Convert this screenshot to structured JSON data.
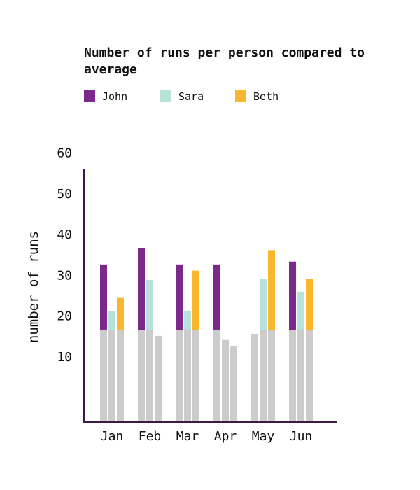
{
  "chart_data": {
    "type": "bar",
    "title": "Number of runs per person compared to average",
    "ylabel": "number of runs",
    "xlabel": "",
    "categories": [
      "Jan",
      "Feb",
      "Mar",
      "Apr",
      "May",
      "Jun"
    ],
    "series": [
      {
        "name": "John",
        "values": [
          32.5,
          36.5,
          32.5,
          32.5,
          15.5,
          33.2
        ]
      },
      {
        "name": "Sara",
        "values": [
          21,
          28.7,
          21.2,
          14,
          29,
          25.8
        ]
      },
      {
        "name": "Beth",
        "values": [
          24.3,
          15,
          31,
          12.5,
          36,
          29
        ]
      }
    ],
    "average": [
      16.5,
      16.5,
      16.5,
      16.5,
      16.5,
      16.5
    ],
    "ylim": [
      0,
      62
    ],
    "yticks": [
      10,
      20,
      30,
      40,
      50,
      60
    ],
    "grid": false,
    "legend_position": "top-left",
    "colors": {
      "John": "#7b2a8c",
      "Sara": "#b6e2da",
      "Beth": "#fbb62e",
      "average": "#cccccc",
      "axis": "#3d1a45"
    }
  }
}
